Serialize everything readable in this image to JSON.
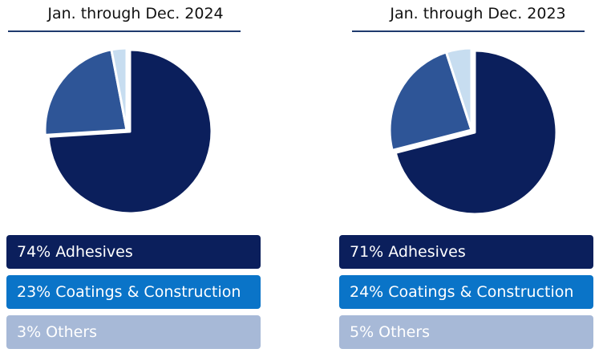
{
  "colors": {
    "adhesives": "#0b1f5c",
    "coatings_construction": "#2e5597",
    "others": "#c7ddf0",
    "legend_adhesives": "#0b1f5c",
    "legend_coatings_construction": "#0a74c8",
    "legend_others": "#a7b9d7"
  },
  "chart_data": [
    {
      "type": "pie",
      "title": "Jan. through Dec. 2024",
      "categories": [
        "Adhesives",
        "Coatings & Construction",
        "Others"
      ],
      "values": [
        74,
        23,
        3
      ],
      "legend": [
        "74% Adhesives",
        "23% Coatings & Construction",
        "3% Others"
      ],
      "legend_placement": "bottom"
    },
    {
      "type": "pie",
      "title": "Jan. through Dec. 2023",
      "categories": [
        "Adhesives",
        "Coatings & Construction",
        "Others"
      ],
      "values": [
        71,
        24,
        5
      ],
      "legend": [
        "71% Adhesives",
        "24% Coatings & Construction",
        "5% Others"
      ],
      "legend_placement": "bottom"
    }
  ]
}
